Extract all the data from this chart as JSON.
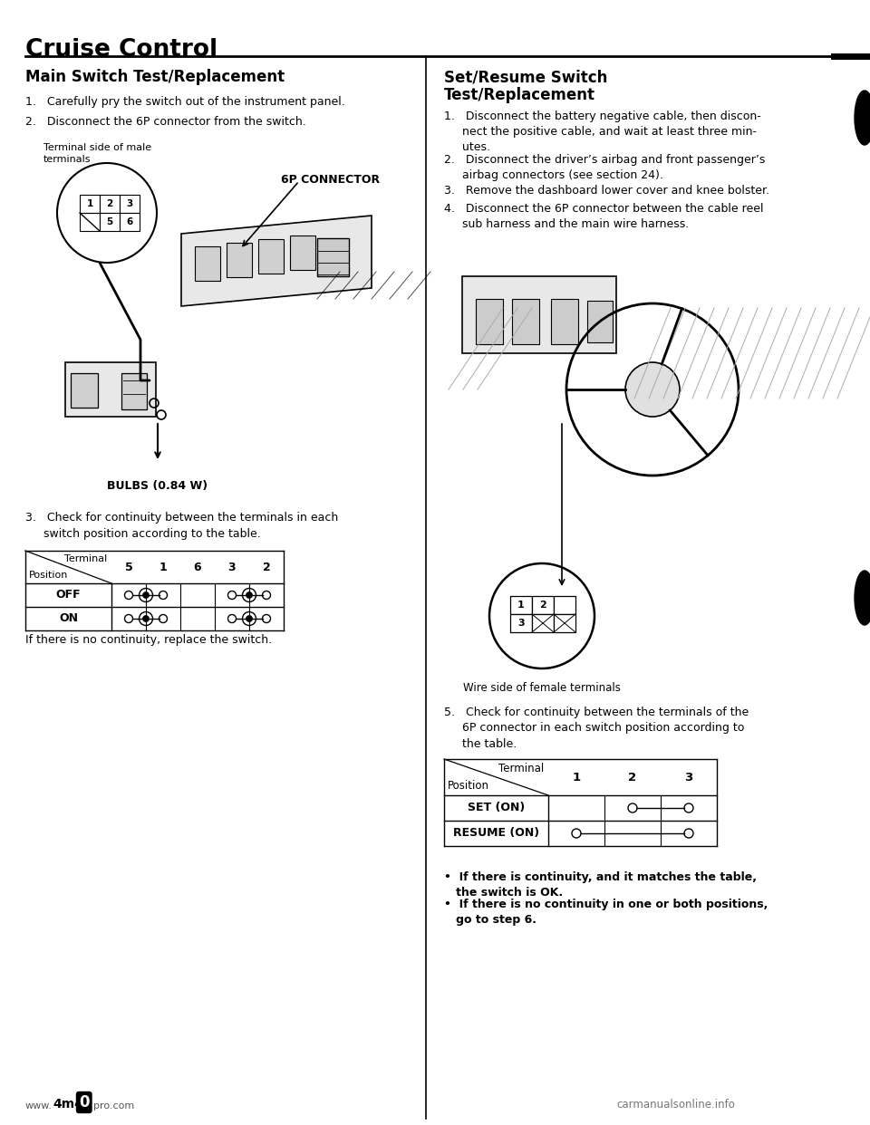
{
  "page_title": "Cruise Control",
  "left_section_title": "Main Switch Test/Replacement",
  "right_section_title": "Set/Resume Switch\nTest/Replacement",
  "left_step1": "1.   Carefully pry the switch out of the instrument panel.",
  "left_step2": "2.   Disconnect the 6P connector from the switch.",
  "left_label_terminal": "Terminal side of male\nterminals",
  "left_label_connector": "6P CONNECTOR",
  "left_label_bulbs": "BULBS (0.84 W)",
  "left_step3": "3.   Check for continuity between the terminals in each\n     switch position according to the table.",
  "left_note": "If there is no continuity, replace the switch.",
  "right_step1": "1.   Disconnect the battery negative cable, then discon-\n     nect the positive cable, and wait at least three min-\n     utes.",
  "right_step2": "2.   Disconnect the driver’s airbag and front passenger’s\n     airbag connectors (see section 24).",
  "right_step3": "3.   Remove the dashboard lower cover and knee bolster.",
  "right_step4": "4.   Disconnect the 6P connector between the cable reel\n     sub harness and the main wire harness.",
  "right_label_wire": "Wire side of female terminals",
  "right_step5": "5.   Check for continuity between the terminals of the\n     6P connector in each switch position according to\n     the table.",
  "right_bullet1": "•  If there is continuity, and it matches the table,\n   the switch is OK.",
  "right_bullet2": "•  If there is no continuity in one or both positions,\n   go to step 6.",
  "bg_color": "#ffffff",
  "text_color": "#000000"
}
